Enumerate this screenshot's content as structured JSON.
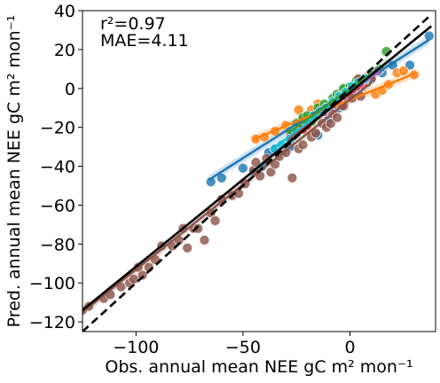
{
  "chart_data": {
    "type": "scatter",
    "title": "",
    "xlabel": "Obs. annual mean NEE gC m² mon⁻¹",
    "ylabel": "Pred. annual mean NEE gC m² mon⁻¹",
    "xlim": [
      -125,
      40
    ],
    "ylim": [
      -125,
      40
    ],
    "xticks": [
      -100,
      -50,
      0
    ],
    "xtick_labels": [
      "−100",
      "−50",
      "0"
    ],
    "yticks": [
      -120,
      -100,
      -80,
      -60,
      -40,
      -20,
      0,
      20,
      40
    ],
    "ytick_labels": [
      "−120",
      "−100",
      "−80",
      "−60",
      "−40",
      "−20",
      "0",
      "20",
      "40"
    ],
    "grid": false,
    "annotations": {
      "r2": "r²=0.97",
      "mae": "MAE=4.11"
    },
    "one_to_one_line": {
      "style": "dashed",
      "color": "#000000",
      "x": [
        -125,
        38
      ],
      "y": [
        -125,
        38
      ]
    },
    "overall_fit": {
      "color": "#000000",
      "x": [
        -125,
        38
      ],
      "y": [
        -114,
        32
      ]
    },
    "series": [
      {
        "color": "#1f77b4",
        "points": [
          [
            -65,
            -48
          ],
          [
            -60,
            -46
          ],
          [
            -50,
            -41
          ],
          [
            -45,
            -43
          ],
          [
            -41,
            -40
          ],
          [
            -38,
            -33
          ],
          [
            -35,
            -31
          ],
          [
            -32,
            -33
          ],
          [
            -28,
            -30
          ],
          [
            -15,
            -24
          ],
          [
            -10,
            -16
          ],
          [
            -5,
            -10
          ],
          [
            0,
            -4
          ],
          [
            5,
            2
          ],
          [
            10,
            5
          ],
          [
            15,
            8
          ],
          [
            20,
            12
          ],
          [
            28,
            12
          ],
          [
            37,
            27
          ]
        ],
        "fit": {
          "x": [
            -66,
            37
          ],
          "y": [
            -47,
            25
          ]
        }
      },
      {
        "color": "#ff7f0e",
        "points": [
          [
            -44,
            -26
          ],
          [
            -40,
            -25
          ],
          [
            -35,
            -22
          ],
          [
            -30,
            -19
          ],
          [
            -24,
            -11
          ],
          [
            -22,
            -16
          ],
          [
            -18,
            -11
          ],
          [
            -15,
            -8
          ],
          [
            -12,
            -12
          ],
          [
            -8,
            -10
          ],
          [
            -5,
            -5
          ],
          [
            0,
            0
          ],
          [
            5,
            2
          ],
          [
            8,
            6
          ],
          [
            12,
            -3
          ],
          [
            15,
            -1
          ],
          [
            18,
            2
          ],
          [
            22,
            8
          ],
          [
            25,
            9
          ],
          [
            30,
            7
          ]
        ],
        "fit": {
          "x": [
            -45,
            31
          ],
          "y": [
            -26,
            8
          ]
        }
      },
      {
        "color": "#2ca02c",
        "points": [
          [
            -28,
            -22
          ],
          [
            -25,
            -18
          ],
          [
            -22,
            -15
          ],
          [
            -20,
            -14
          ],
          [
            -18,
            -17
          ],
          [
            -15,
            -10
          ],
          [
            -12,
            -8
          ],
          [
            -8,
            -5
          ],
          [
            -6,
            -3
          ],
          [
            -3,
            -1
          ],
          [
            -3,
            0
          ],
          [
            0,
            1
          ],
          [
            3,
            4
          ],
          [
            6,
            5
          ],
          [
            8,
            3
          ],
          [
            10,
            8
          ],
          [
            14,
            10
          ],
          [
            17,
            19
          ]
        ],
        "fit": {
          "x": [
            -29,
            18
          ],
          "y": [
            -23,
            14
          ]
        }
      },
      {
        "color": "#d62728",
        "points": [
          [
            -28,
            -25
          ],
          [
            -25,
            -22
          ],
          [
            -22,
            -21
          ],
          [
            -20,
            -19
          ],
          [
            -17,
            -15
          ],
          [
            -14,
            -12
          ],
          [
            -11,
            -10
          ],
          [
            -8,
            -8
          ],
          [
            -5,
            -5
          ],
          [
            -2,
            -3
          ],
          [
            1,
            -1
          ],
          [
            4,
            1
          ],
          [
            6,
            2
          ]
        ],
        "fit": {
          "x": [
            -29,
            6
          ],
          "y": [
            -26,
            2
          ]
        }
      },
      {
        "color": "#9467bd",
        "points": [
          [
            -12,
            -12
          ],
          [
            -10,
            -10
          ],
          [
            -8,
            -9
          ],
          [
            -5,
            -6
          ],
          [
            -2,
            -4
          ],
          [
            1,
            -1
          ],
          [
            3,
            1
          ],
          [
            5,
            3
          ],
          [
            8,
            5
          ],
          [
            10,
            7
          ],
          [
            13,
            9
          ]
        ],
        "fit": {
          "x": [
            -13,
            14
          ],
          "y": [
            -12,
            9
          ]
        }
      },
      {
        "color": "#8c564b",
        "points": [
          [
            -125,
            -114
          ],
          [
            -122,
            -112
          ],
          [
            -115,
            -108
          ],
          [
            -112,
            -106
          ],
          [
            -107,
            -102
          ],
          [
            -103,
            -100
          ],
          [
            -101,
            -98
          ],
          [
            -99,
            -92
          ],
          [
            -97,
            -96
          ],
          [
            -94,
            -92
          ],
          [
            -91,
            -88
          ],
          [
            -88,
            -81
          ],
          [
            -83,
            -81
          ],
          [
            -80,
            -78
          ],
          [
            -78,
            -72
          ],
          [
            -76,
            -82
          ],
          [
            -73,
            -72
          ],
          [
            -71,
            -72
          ],
          [
            -68,
            -78
          ],
          [
            -65,
            -64
          ],
          [
            -63,
            -68
          ],
          [
            -60,
            -57
          ],
          [
            -55,
            -55
          ],
          [
            -52,
            -54
          ],
          [
            -49,
            -49
          ],
          [
            -45,
            -42
          ],
          [
            -44,
            -38
          ],
          [
            -42,
            -45
          ],
          [
            -39,
            -36
          ],
          [
            -37,
            -43
          ],
          [
            -35,
            -39
          ],
          [
            -33,
            -35
          ],
          [
            -30,
            -33
          ],
          [
            -28,
            -27
          ],
          [
            -27,
            -46
          ],
          [
            -24,
            -31
          ],
          [
            -22,
            -29
          ],
          [
            -18,
            -25
          ],
          [
            -16,
            -23
          ],
          [
            -13,
            -18
          ],
          [
            -11,
            -20
          ],
          [
            -9,
            -18
          ],
          [
            -8,
            -13
          ],
          [
            -6,
            -15
          ],
          [
            -4,
            -9
          ],
          [
            -3,
            -9
          ],
          [
            1,
            -5
          ],
          [
            4,
            5
          ],
          [
            5,
            -4
          ],
          [
            10,
            5
          ]
        ],
        "fit": {
          "x": [
            -125,
            10
          ],
          "y": [
            -115,
            3
          ]
        }
      },
      {
        "color": "#17becf",
        "points": [
          [
            -35,
            -31
          ],
          [
            -32,
            -29
          ],
          [
            -28,
            -26
          ],
          [
            -25,
            -23
          ],
          [
            -20,
            -17
          ],
          [
            -17,
            -14
          ],
          [
            -14,
            -12
          ],
          [
            -11,
            -10
          ],
          [
            -8,
            -7
          ],
          [
            -5,
            -4
          ],
          [
            -2,
            -2
          ],
          [
            1,
            1
          ],
          [
            4,
            3
          ],
          [
            7,
            5
          ]
        ],
        "fit": {
          "x": [
            -36,
            8
          ],
          "y": [
            -31,
            5
          ]
        }
      }
    ]
  }
}
